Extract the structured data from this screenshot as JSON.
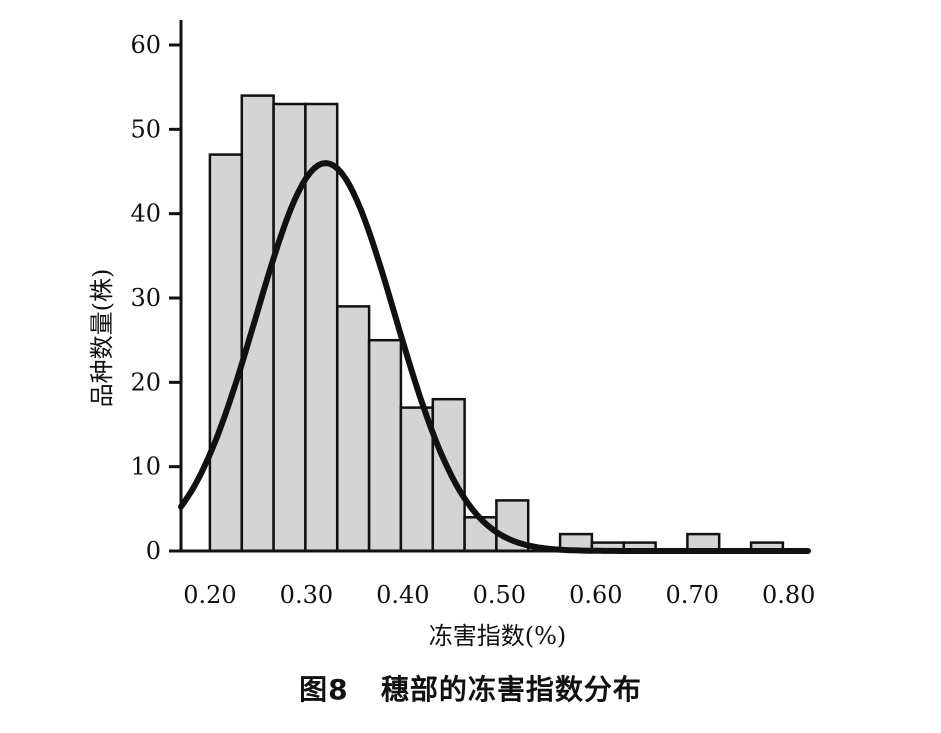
{
  "chart_data": {
    "type": "bar",
    "title": "",
    "xlabel": "冻害指数(%)",
    "ylabel": "品种数量(株)",
    "xlim": [
      0.17,
      0.82
    ],
    "ylim": [
      0,
      60
    ],
    "x_ticks": [
      "0.20",
      "0.30",
      "0.40",
      "0.50",
      "0.60",
      "0.70",
      "0.80"
    ],
    "y_ticks": [
      "0",
      "10",
      "20",
      "30",
      "40",
      "50",
      "60"
    ],
    "bin_width": 0.033,
    "bins": [
      {
        "start": 0.2,
        "end": 0.233,
        "value": 47
      },
      {
        "start": 0.233,
        "end": 0.266,
        "value": 54
      },
      {
        "start": 0.266,
        "end": 0.299,
        "value": 53
      },
      {
        "start": 0.299,
        "end": 0.332,
        "value": 53
      },
      {
        "start": 0.332,
        "end": 0.365,
        "value": 29
      },
      {
        "start": 0.365,
        "end": 0.398,
        "value": 25
      },
      {
        "start": 0.398,
        "end": 0.431,
        "value": 17
      },
      {
        "start": 0.431,
        "end": 0.464,
        "value": 18
      },
      {
        "start": 0.464,
        "end": 0.497,
        "value": 4
      },
      {
        "start": 0.497,
        "end": 0.53,
        "value": 6
      },
      {
        "start": 0.53,
        "end": 0.563,
        "value": 0
      },
      {
        "start": 0.563,
        "end": 0.596,
        "value": 2
      },
      {
        "start": 0.596,
        "end": 0.629,
        "value": 1
      },
      {
        "start": 0.629,
        "end": 0.662,
        "value": 1
      },
      {
        "start": 0.662,
        "end": 0.695,
        "value": 0
      },
      {
        "start": 0.695,
        "end": 0.728,
        "value": 2
      },
      {
        "start": 0.728,
        "end": 0.761,
        "value": 0
      },
      {
        "start": 0.761,
        "end": 0.794,
        "value": 1
      }
    ],
    "normal_curve": {
      "mean": 0.32,
      "sd": 0.072,
      "peak": 46
    },
    "colors": {
      "bar_fill": "#d4d4d4",
      "bar_stroke": "#111111",
      "curve": "#111111"
    },
    "grid": false
  },
  "caption": "图8   穗部的冻害指数分布"
}
